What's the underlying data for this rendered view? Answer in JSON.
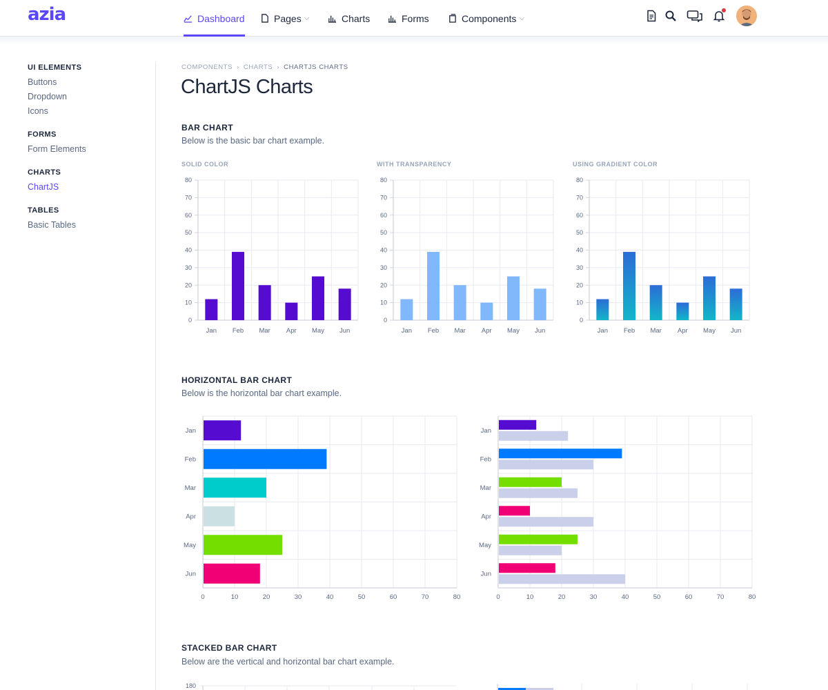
{
  "header": {
    "logo": "azia",
    "nav": [
      {
        "label": "Dashboard",
        "active": true
      },
      {
        "label": "Pages",
        "caret": true
      },
      {
        "label": "Charts"
      },
      {
        "label": "Forms"
      },
      {
        "label": "Components",
        "caret": true
      }
    ],
    "icons": [
      "document-icon",
      "search-icon",
      "chat-icon",
      "bell-icon"
    ]
  },
  "sidebar": {
    "groups": [
      {
        "title": "UI ELEMENTS",
        "items": [
          "Buttons",
          "Dropdown",
          "Icons"
        ]
      },
      {
        "title": "FORMS",
        "items": [
          "Form Elements"
        ]
      },
      {
        "title": "CHARTS",
        "items": [
          "ChartJS"
        ],
        "active": "ChartJS"
      },
      {
        "title": "TABLES",
        "items": [
          "Basic Tables"
        ]
      }
    ]
  },
  "breadcrumb": [
    "COMPONENTS",
    "CHARTS",
    "CHARTJS CHARTS"
  ],
  "page_title": "ChartJS Charts",
  "sections": {
    "bar": {
      "title": "BAR CHART",
      "desc": "Below is the basic bar chart example.",
      "labels": [
        "SOLID COLOR",
        "WITH TRANSPARENCY",
        "USING GRADIENT COLOR"
      ]
    },
    "hbar": {
      "title": "HORIZONTAL BAR CHART",
      "desc": "Below is the horizontal bar chart example."
    },
    "stacked": {
      "title": "STACKED BAR CHART",
      "desc": "Below are the vertical and horizontal bar chart example."
    }
  },
  "colors": {
    "accent": "#5b47fb",
    "solid": "#560bd0",
    "transparent": "#81b8fc",
    "gradient_top": "#2c6cd7",
    "gradient_bottom": "#12b6c8",
    "compare": "#cbd0ea"
  },
  "chart_data": [
    {
      "type": "bar",
      "categories": [
        "Jan",
        "Feb",
        "Mar",
        "Apr",
        "May",
        "Jun"
      ],
      "values": [
        12,
        39,
        20,
        10,
        25,
        18
      ],
      "ylim": [
        0,
        80
      ],
      "yticks": [
        0,
        10,
        20,
        30,
        40,
        50,
        60,
        70,
        80
      ],
      "title": "SOLID COLOR"
    },
    {
      "type": "bar",
      "categories": [
        "Jan",
        "Feb",
        "Mar",
        "Apr",
        "May",
        "Jun"
      ],
      "values": [
        12,
        39,
        20,
        10,
        25,
        18
      ],
      "ylim": [
        0,
        80
      ],
      "yticks": [
        0,
        10,
        20,
        30,
        40,
        50,
        60,
        70,
        80
      ],
      "title": "WITH TRANSPARENCY"
    },
    {
      "type": "bar",
      "categories": [
        "Jan",
        "Feb",
        "Mar",
        "Apr",
        "May",
        "Jun"
      ],
      "values": [
        12,
        39,
        20,
        10,
        25,
        18
      ],
      "ylim": [
        0,
        80
      ],
      "yticks": [
        0,
        10,
        20,
        30,
        40,
        50,
        60,
        70,
        80
      ],
      "title": "USING GRADIENT COLOR"
    },
    {
      "type": "bar",
      "orientation": "horizontal",
      "categories": [
        "Jan",
        "Feb",
        "Mar",
        "Apr",
        "May",
        "Jun"
      ],
      "values": [
        12,
        39,
        20,
        10,
        25,
        18
      ],
      "xlim": [
        0,
        80
      ],
      "xticks": [
        0,
        10,
        20,
        30,
        40,
        50,
        60,
        70,
        80
      ],
      "bar_colors": [
        "#560bd0",
        "#007bff",
        "#00cccc",
        "#cbe0e3",
        "#74de00",
        "#f10075"
      ]
    },
    {
      "type": "bar",
      "orientation": "horizontal",
      "categories": [
        "Jan",
        "Feb",
        "Mar",
        "Apr",
        "May",
        "Jun"
      ],
      "xlim": [
        0,
        80
      ],
      "xticks": [
        0,
        10,
        20,
        30,
        40,
        50,
        60,
        70,
        80
      ],
      "series": [
        {
          "values": [
            12,
            39,
            20,
            10,
            25,
            18
          ],
          "colors": [
            "#560bd0",
            "#007bff",
            "#74de00",
            "#f10075",
            "#74de00",
            "#f10075"
          ]
        },
        {
          "values": [
            22,
            30,
            25,
            30,
            20,
            40
          ],
          "colors": [
            "#cbd0ea",
            "#cbd0ea",
            "#cbd0ea",
            "#cbd0ea",
            "#cbd0ea",
            "#cbd0ea"
          ]
        }
      ]
    },
    {
      "type": "bar",
      "stacked": true,
      "ylim": [
        0,
        180
      ],
      "yticks": [
        180
      ]
    }
  ]
}
